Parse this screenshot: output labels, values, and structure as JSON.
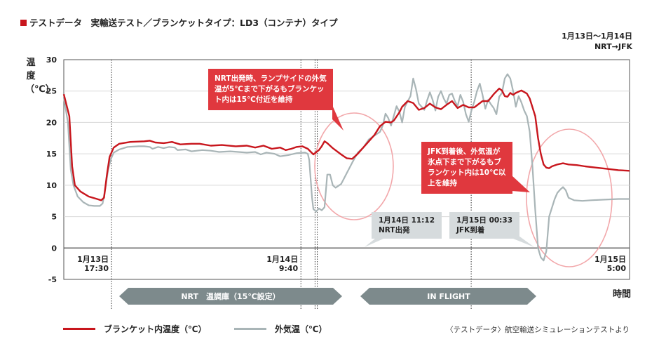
{
  "title": "テストデータ　実輸送テスト／ブランケットタイプ：LD3（コンテナ）タイプ",
  "route": {
    "line1": "1月13日〜1月14日",
    "line2": "NRT→JFK"
  },
  "colors": {
    "inside": "#c8161d",
    "outside": "#a9b5b7",
    "band": "#7d8a8c",
    "note_red": "#e0383e",
    "note_gray": "#d6dbdd",
    "circle": "#f2a7aa"
  },
  "chart_data": {
    "type": "line",
    "ylabel": "温度（℃）",
    "xlabel": "時間",
    "ylim": [
      -5,
      30
    ],
    "yticks": [
      30,
      25,
      20,
      15,
      10,
      5,
      0,
      -5
    ],
    "grid": true,
    "legend_position": "bottom-left",
    "x_ticks": [
      {
        "label": "1月13日\n17:30",
        "at": 17.2
      },
      {
        "label": "1月14日\n9:40",
        "at": 85.5
      },
      {
        "label": "1月15日\n5:00",
        "at": 170
      }
    ],
    "series": [
      {
        "name": "ブランケット内温度（℃）",
        "color": "#c8161d",
        "points": [
          [
            0,
            24.5
          ],
          [
            2,
            21
          ],
          [
            3,
            13
          ],
          [
            4,
            10
          ],
          [
            6,
            9
          ],
          [
            9,
            8.2
          ],
          [
            12,
            7.8
          ],
          [
            13.5,
            7.6
          ],
          [
            14.5,
            8
          ],
          [
            15.5,
            11.5
          ],
          [
            16.5,
            14.5
          ],
          [
            18,
            16
          ],
          [
            20,
            16.6
          ],
          [
            24,
            16.9
          ],
          [
            29,
            17
          ],
          [
            31,
            17.1
          ],
          [
            33,
            16.8
          ],
          [
            36,
            16.7
          ],
          [
            39,
            16.9
          ],
          [
            42,
            16.5
          ],
          [
            46,
            16.6
          ],
          [
            49,
            16.6
          ],
          [
            53,
            16.3
          ],
          [
            57,
            16.4
          ],
          [
            62,
            16.2
          ],
          [
            66,
            16.3
          ],
          [
            69,
            16
          ],
          [
            72,
            16.3
          ],
          [
            75,
            15.8
          ],
          [
            78,
            16
          ],
          [
            80,
            15.6
          ],
          [
            82,
            15.8
          ],
          [
            84,
            16.1
          ],
          [
            86,
            16.2
          ],
          [
            88,
            15.8
          ],
          [
            90,
            14.9
          ],
          [
            92,
            15.6
          ],
          [
            93,
            16.2
          ],
          [
            94,
            17
          ],
          [
            95,
            16.7
          ],
          [
            97,
            15.9
          ],
          [
            100,
            14.9
          ],
          [
            102,
            14.3
          ],
          [
            104,
            14.2
          ],
          [
            106,
            15
          ],
          [
            108,
            16
          ],
          [
            110,
            17
          ],
          [
            112,
            18
          ],
          [
            114,
            19.4
          ],
          [
            116,
            20.1
          ],
          [
            118,
            20
          ],
          [
            119,
            20.3
          ],
          [
            121,
            21.6
          ],
          [
            122,
            22.5
          ],
          [
            124,
            23.4
          ],
          [
            126,
            23.1
          ],
          [
            128,
            22
          ],
          [
            130,
            22.3
          ],
          [
            132,
            23
          ],
          [
            134,
            22.4
          ],
          [
            136,
            22.1
          ],
          [
            138,
            22.8
          ],
          [
            140,
            23.4
          ],
          [
            142,
            22.3
          ],
          [
            144,
            22.8
          ],
          [
            146,
            22.4
          ],
          [
            148,
            22.4
          ],
          [
            151,
            23.4
          ],
          [
            153,
            23.4
          ],
          [
            155,
            24.5
          ],
          [
            157,
            25.4
          ],
          [
            158,
            25.1
          ],
          [
            159,
            24.2
          ],
          [
            160,
            24.1
          ],
          [
            161,
            24.7
          ],
          [
            162,
            24.4
          ],
          [
            163,
            24.7
          ],
          [
            165,
            25.1
          ],
          [
            167,
            24.6
          ],
          [
            168,
            23.8
          ],
          [
            170,
            21
          ],
          [
            171,
            17.5
          ],
          [
            172,
            15
          ],
          [
            173,
            13.3
          ],
          [
            174,
            12.8
          ],
          [
            175,
            12.7
          ],
          [
            176,
            13
          ],
          [
            178,
            13.3
          ],
          [
            180,
            13.5
          ],
          [
            182,
            13.3
          ],
          [
            185,
            13.2
          ],
          [
            188,
            13
          ],
          [
            192,
            12.8
          ],
          [
            196,
            12.6
          ],
          [
            200,
            12.4
          ],
          [
            204,
            12.3
          ]
        ]
      },
      {
        "name": "外気温（℃）",
        "color": "#a9b5b7",
        "points": [
          [
            0,
            24
          ],
          [
            1.5,
            20
          ],
          [
            2.5,
            12.5
          ],
          [
            3.5,
            10
          ],
          [
            5,
            8.2
          ],
          [
            7,
            7.3
          ],
          [
            9,
            6.8
          ],
          [
            11,
            6.7
          ],
          [
            13,
            6.7
          ],
          [
            14,
            7.1
          ],
          [
            15,
            9.5
          ],
          [
            16,
            12.5
          ],
          [
            17,
            14.2
          ],
          [
            18,
            15.2
          ],
          [
            20,
            15.7
          ],
          [
            23,
            16.1
          ],
          [
            27,
            16.2
          ],
          [
            29,
            16.2
          ],
          [
            31,
            16.1
          ],
          [
            32,
            15.8
          ],
          [
            34,
            16.1
          ],
          [
            36,
            15.9
          ],
          [
            38,
            16.1
          ],
          [
            40,
            16
          ],
          [
            41,
            15.6
          ],
          [
            44,
            15.7
          ],
          [
            46,
            15.4
          ],
          [
            48,
            15.5
          ],
          [
            50,
            15.6
          ],
          [
            53,
            15.5
          ],
          [
            56,
            15.3
          ],
          [
            60,
            15.4
          ],
          [
            63,
            15.3
          ],
          [
            66,
            15.2
          ],
          [
            69,
            15.3
          ],
          [
            71,
            14.9
          ],
          [
            73,
            15.2
          ],
          [
            76,
            15
          ],
          [
            78,
            14.6
          ],
          [
            81,
            14.8
          ],
          [
            84,
            15.1
          ],
          [
            87,
            15.2
          ],
          [
            88,
            15
          ],
          [
            88.5,
            14
          ],
          [
            89,
            11
          ],
          [
            89.5,
            8
          ],
          [
            90,
            6.2
          ],
          [
            91,
            5.8
          ],
          [
            92,
            6.3
          ],
          [
            93,
            6
          ],
          [
            94,
            6.5
          ],
          [
            95,
            11.7
          ],
          [
            96,
            11.7
          ],
          [
            97,
            10
          ],
          [
            98,
            9.6
          ],
          [
            100,
            10.2
          ],
          [
            102,
            11.9
          ],
          [
            104,
            13.6
          ],
          [
            106,
            15.2
          ],
          [
            108,
            16
          ],
          [
            110,
            17.3
          ],
          [
            112,
            17.9
          ],
          [
            114,
            18.5
          ],
          [
            115,
            19.5
          ],
          [
            116,
            21.4
          ],
          [
            117,
            20.7
          ],
          [
            118,
            19.5
          ],
          [
            120,
            22.6
          ],
          [
            121,
            21.7
          ],
          [
            122,
            20
          ],
          [
            123,
            22.5
          ],
          [
            125,
            24.2
          ],
          [
            126,
            27
          ],
          [
            127,
            25.3
          ],
          [
            128,
            23
          ],
          [
            130,
            22
          ],
          [
            131,
            23.5
          ],
          [
            132,
            24.8
          ],
          [
            133,
            23.6
          ],
          [
            134,
            21.9
          ],
          [
            135,
            24.1
          ],
          [
            136,
            25
          ],
          [
            137,
            23.8
          ],
          [
            138,
            23
          ],
          [
            139,
            24.4
          ],
          [
            140,
            24.6
          ],
          [
            141,
            23.4
          ],
          [
            142,
            22.6
          ],
          [
            143,
            24.4
          ],
          [
            144,
            23.3
          ],
          [
            145,
            21.3
          ],
          [
            146,
            20.1
          ],
          [
            147,
            21.9
          ],
          [
            148,
            23.3
          ],
          [
            149,
            25
          ],
          [
            150,
            26.2
          ],
          [
            151,
            24.4
          ],
          [
            152,
            22.2
          ],
          [
            153,
            23.6
          ],
          [
            154,
            22.9
          ],
          [
            155,
            22.3
          ],
          [
            156,
            21.3
          ],
          [
            157,
            24.1
          ],
          [
            158,
            24.7
          ],
          [
            159,
            27
          ],
          [
            160,
            27.7
          ],
          [
            161,
            27
          ],
          [
            162,
            25
          ],
          [
            163,
            22.5
          ],
          [
            164,
            24.2
          ],
          [
            165,
            23.2
          ],
          [
            166,
            21.9
          ],
          [
            167,
            21
          ],
          [
            168,
            18.5
          ],
          [
            169,
            13
          ],
          [
            170,
            6
          ],
          [
            171,
            0
          ],
          [
            172,
            -1.5
          ],
          [
            173,
            -2
          ],
          [
            174,
            -0.5
          ],
          [
            175,
            5
          ],
          [
            177,
            7.8
          ],
          [
            178,
            8.8
          ],
          [
            179,
            9.3
          ],
          [
            180,
            9.7
          ],
          [
            181,
            9.2
          ],
          [
            182,
            8
          ],
          [
            184,
            7.6
          ],
          [
            187,
            7.5
          ],
          [
            190,
            7.6
          ],
          [
            195,
            7.7
          ],
          [
            200,
            7.8
          ],
          [
            204,
            7.8
          ]
        ]
      }
    ]
  },
  "annotations": {
    "nrt_note": "NRT出発時、ランプサイドの外気温が5℃まで下がるもブランケット内は15℃付近を維持",
    "jfk_note": "JFK到着後、外気温が氷点下まで下がるもブランケット内は10℃以上を維持",
    "nrt_depart": {
      "line1": "1月14日 11:12",
      "line2": "NRT出発"
    },
    "jfk_arrive": {
      "line1": "1月15日 00:33",
      "line2": "JFK到着"
    }
  },
  "bands": {
    "nrt": "NRT　温調庫（15℃設定）",
    "flight": "IN FLIGHT"
  },
  "legend": {
    "inside": "ブランケット内温度（℃）",
    "outside": "外気温（℃）"
  },
  "source": "〈テストデータ〉航空輸送シミュレーションテストより"
}
